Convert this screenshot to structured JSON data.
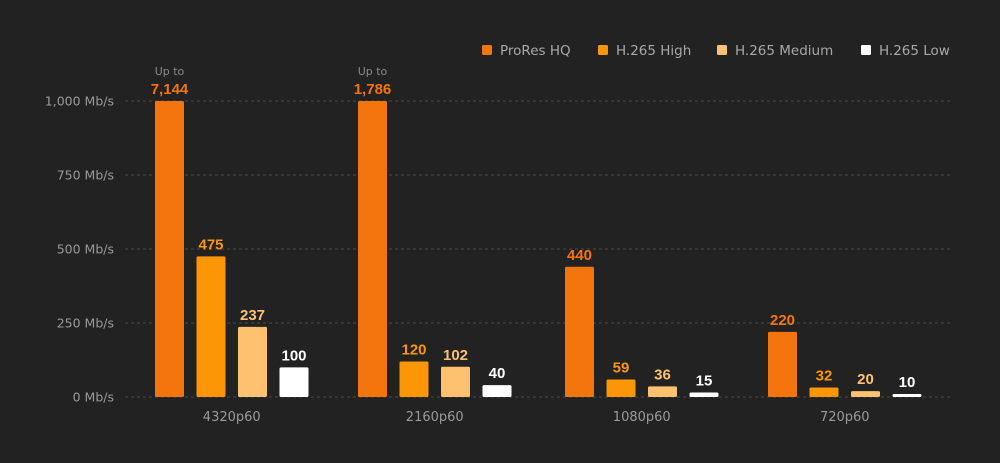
{
  "chart_data": {
    "type": "bar",
    "title": "",
    "xlabel": "",
    "ylabel": "",
    "ylim": [
      0,
      1000
    ],
    "y_ticks": [
      0,
      250,
      500,
      750,
      1000
    ],
    "y_tick_labels": [
      "0 Mb/s",
      "250 Mb/s",
      "500 Mb/s",
      "750 Mb/s",
      "1,000 Mb/s"
    ],
    "categories": [
      "4320p60",
      "2160p60",
      "1080p60",
      "720p60"
    ],
    "series": [
      {
        "name": "ProRes HQ",
        "color": "#f4750e",
        "label_color": "#f4750e",
        "values": [
          7144,
          1786,
          440,
          220
        ],
        "value_labels": [
          "7,144",
          "1,786",
          "440",
          "220"
        ],
        "notes": [
          "Up to",
          "Up to",
          "",
          ""
        ]
      },
      {
        "name": "H.265 High",
        "color": "#fd9606",
        "label_color": "#fd9606",
        "values": [
          475,
          120,
          59,
          32
        ],
        "value_labels": [
          "475",
          "120",
          "59",
          "32"
        ],
        "notes": [
          "",
          "",
          "",
          ""
        ]
      },
      {
        "name": "H.265 Medium",
        "color": "#fdc170",
        "label_color": "#fdc170",
        "values": [
          237,
          102,
          36,
          20
        ],
        "value_labels": [
          "237",
          "102",
          "36",
          "20"
        ],
        "notes": [
          "",
          "",
          "",
          ""
        ]
      },
      {
        "name": "H.265 Low",
        "color": "#ffffff",
        "label_color": "#ffffff",
        "values": [
          100,
          40,
          15,
          10
        ],
        "value_labels": [
          "100",
          "40",
          "15",
          "10"
        ],
        "notes": [
          "",
          "",
          "",
          ""
        ]
      }
    ],
    "legend_position": "top-right",
    "grid": true
  }
}
